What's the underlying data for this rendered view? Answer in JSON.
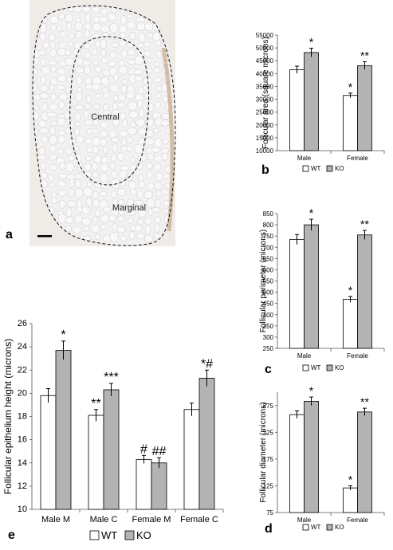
{
  "colors": {
    "wt": "#ffffff",
    "ko": "#b3b3b3",
    "stroke": "#000000",
    "tissue_bg": "#ece9e3",
    "tissue_stain": "#b8936a",
    "cell": "#f8f8fa"
  },
  "micrograph": {
    "panel_label": "a",
    "region_labels": [
      "Central",
      "Marginal"
    ]
  },
  "legend": {
    "wt": "WT",
    "ko": "KO"
  },
  "chart_data": [
    {
      "panel": "b",
      "type": "bar",
      "ylabel": "Follicular area (square microns)",
      "categories": [
        "Male",
        "Female"
      ],
      "ylim": [
        10000,
        55000
      ],
      "yticks": [
        10000,
        15000,
        20000,
        25000,
        30000,
        35000,
        40000,
        45000,
        50000,
        55000
      ],
      "series": [
        {
          "name": "WT",
          "values": [
            41500,
            31500
          ],
          "errors": [
            1400,
            900
          ]
        },
        {
          "name": "KO",
          "values": [
            48200,
            43100
          ],
          "errors": [
            1700,
            1500
          ]
        }
      ],
      "annotations": [
        [
          "",
          "*"
        ],
        [
          "*",
          "**"
        ]
      ]
    },
    {
      "panel": "c",
      "type": "bar",
      "ylabel": "Follicular perimeter (microns)",
      "categories": [
        "Male",
        "Female"
      ],
      "ylim": [
        250,
        850
      ],
      "yticks": [
        250,
        300,
        350,
        400,
        450,
        500,
        550,
        600,
        650,
        700,
        750,
        800,
        850
      ],
      "series": [
        {
          "name": "WT",
          "values": [
            735,
            468
          ],
          "errors": [
            22,
            13
          ]
        },
        {
          "name": "KO",
          "values": [
            800,
            755
          ],
          "errors": [
            25,
            20
          ]
        }
      ],
      "annotations": [
        [
          "",
          "*"
        ],
        [
          "*",
          "**"
        ]
      ]
    },
    {
      "panel": "d",
      "type": "bar",
      "ylabel": "Follicular diameter (microns)",
      "categories": [
        "Male",
        "Female"
      ],
      "ylim": [
        75,
        300
      ],
      "yticks": [
        75,
        125,
        175,
        225,
        275
      ],
      "series": [
        {
          "name": "WT",
          "values": [
            258,
            121
          ],
          "errors": [
            7,
            4
          ]
        },
        {
          "name": "KO",
          "values": [
            283,
            263
          ],
          "errors": [
            8,
            7
          ]
        }
      ],
      "annotations": [
        [
          "",
          "*"
        ],
        [
          "*",
          "**"
        ]
      ]
    },
    {
      "panel": "e",
      "type": "bar",
      "ylabel": "Follicular epithelium height  (microns)",
      "categories": [
        "Male M",
        "Male C",
        "Female M",
        "Female C"
      ],
      "ylim": [
        10,
        26
      ],
      "yticks": [
        10,
        12,
        14,
        16,
        18,
        20,
        22,
        24,
        26
      ],
      "series": [
        {
          "name": "WT",
          "values": [
            19.8,
            18.1,
            14.3,
            18.6
          ],
          "errors": [
            0.6,
            0.5,
            0.35,
            0.55
          ]
        },
        {
          "name": "KO",
          "values": [
            23.7,
            20.3,
            14.0,
            21.3
          ],
          "errors": [
            0.8,
            0.55,
            0.45,
            0.7
          ]
        }
      ],
      "annotations": [
        [
          "",
          "**",
          "#",
          ""
        ],
        [
          "*",
          "***",
          "##",
          "*#"
        ]
      ]
    }
  ]
}
